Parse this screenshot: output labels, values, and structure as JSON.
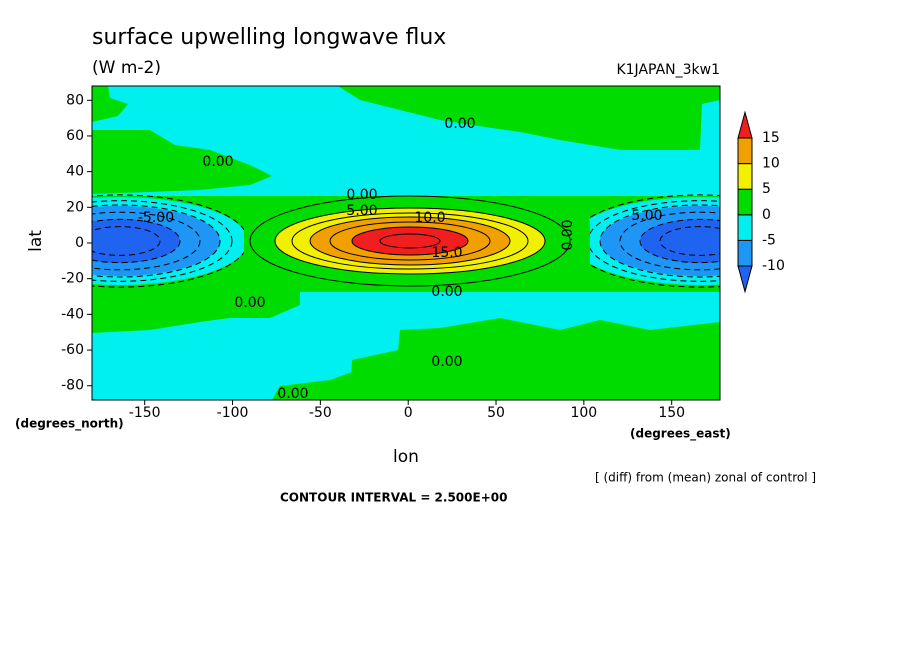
{
  "chart_data": {
    "type": "contour",
    "title": "surface upwelling longwave flux",
    "subtitle": "(W m-2)",
    "run_label": "K1JAPAN_3kw1",
    "x_label": "lon",
    "y_label": "lat",
    "x_units": "(degrees_east)",
    "y_units": "(degrees_north)",
    "note": "[ (diff) from (mean) zonal of control ]",
    "footer": "CONTOUR INTERVAL = 2.500E+00",
    "xlim": [
      -180,
      177.5
    ],
    "ylim": [
      -88,
      88
    ],
    "xticks": [
      -150,
      -100,
      -50,
      0,
      50,
      100,
      150
    ],
    "yticks": [
      -80,
      -60,
      -40,
      -20,
      0,
      20,
      40,
      60,
      80
    ],
    "levels": [
      -10,
      -5,
      0,
      5,
      10,
      15
    ],
    "colors": [
      "#1e64f0",
      "#1e96f5",
      "#00f0f0",
      "#00dc00",
      "#f0f000",
      "#f0a000",
      "#f01e1e"
    ],
    "contour_labels": [
      {
        "value": 0,
        "label": "0.00"
      },
      {
        "value": 0,
        "label": "0.00"
      },
      {
        "value": 0,
        "label": "0.00"
      },
      {
        "value": 0,
        "label": "0.00"
      },
      {
        "value": 0,
        "label": "0.00"
      },
      {
        "value": 0,
        "label": "0.00"
      },
      {
        "value": 0,
        "label": "0.00"
      },
      {
        "value": 0,
        "label": "0.00"
      },
      {
        "value": 5,
        "label": "5.00"
      },
      {
        "value": 5,
        "label": "5.00"
      },
      {
        "value": -5,
        "label": "-5.00"
      },
      {
        "value": 10,
        "label": "10.0"
      },
      {
        "value": 15,
        "label": "15.0"
      }
    ]
  }
}
